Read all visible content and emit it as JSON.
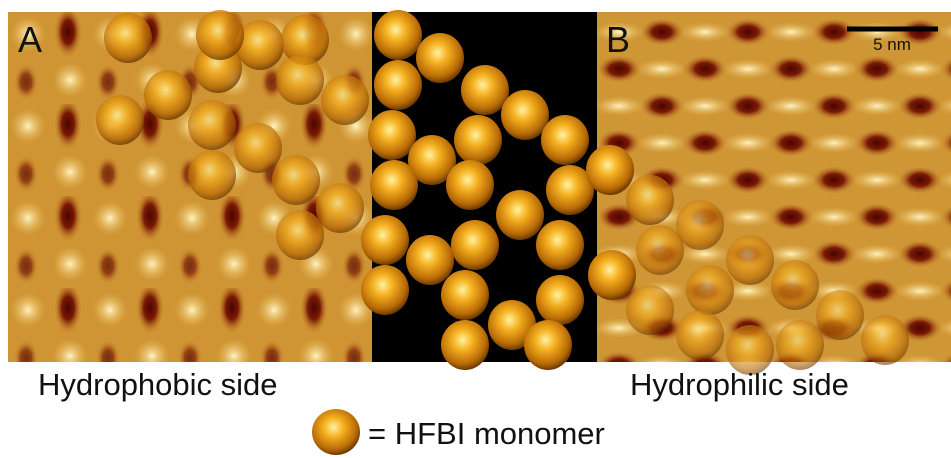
{
  "panels": {
    "left_label": "A",
    "right_label": "B"
  },
  "scale_bar": "5 nm",
  "captions": {
    "left": "Hydrophobic side",
    "right": "Hydrophilic side"
  },
  "legend": "= HFBI monomer"
}
